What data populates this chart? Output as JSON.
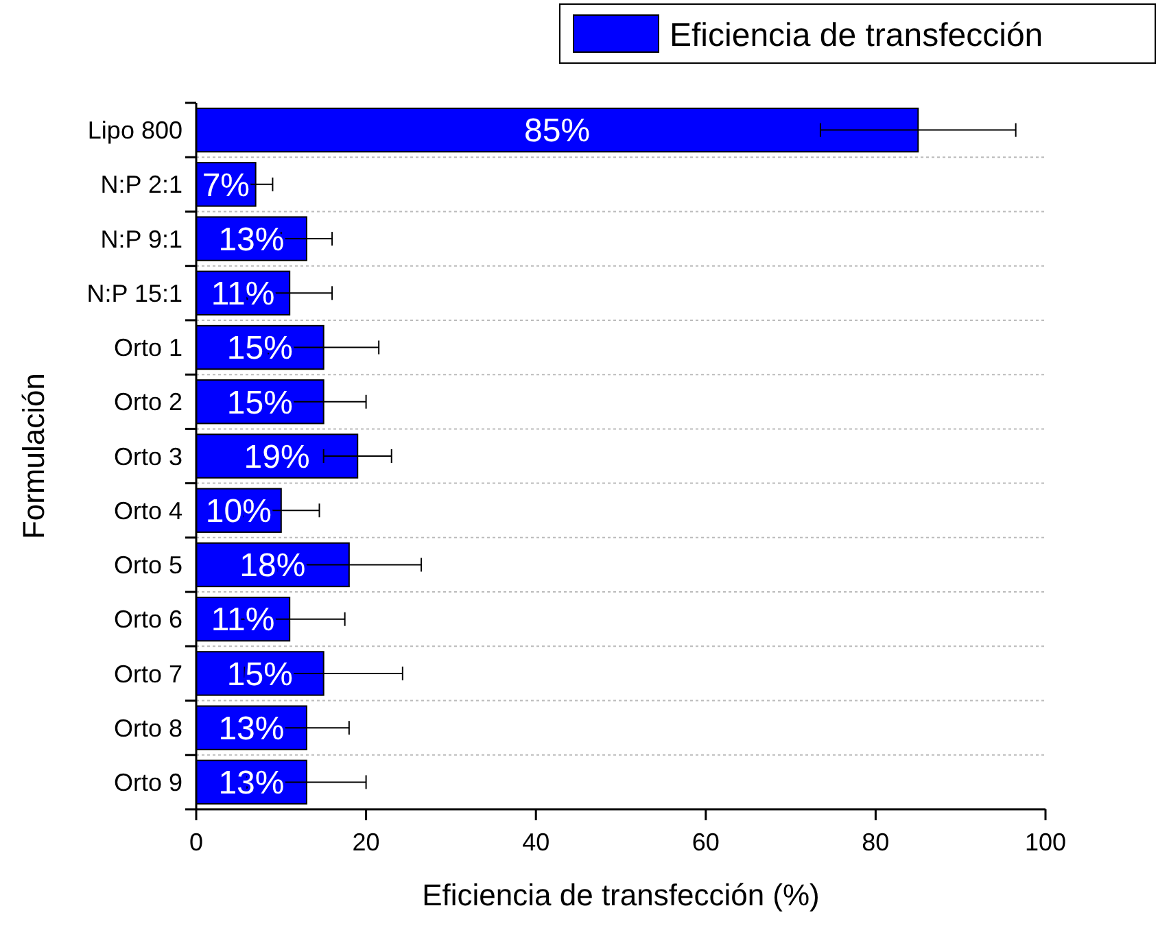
{
  "chart_data": {
    "type": "bar",
    "orientation": "horizontal",
    "xlabel": "Eficiencia de transfección (%)",
    "ylabel": "Formulación",
    "categories": [
      "Lipo 800",
      "N:P 2:1",
      "N:P 9:1",
      "N:P 15:1",
      "Orto 1",
      "Orto 2",
      "Orto 3",
      "Orto 4",
      "Orto 5",
      "Orto 6",
      "Orto 7",
      "Orto 8",
      "Orto 9"
    ],
    "series": [
      {
        "name": "Eficiencia de transfección",
        "color": "#0000ff",
        "values": [
          85,
          7,
          13,
          11,
          15,
          15,
          19,
          10,
          18,
          11,
          15,
          13,
          13
        ],
        "errors": [
          11.5,
          2,
          3,
          5,
          6.5,
          5,
          4,
          4.5,
          8.5,
          6.5,
          9.3,
          5,
          7
        ],
        "value_labels": [
          "85%",
          "7%",
          "13%",
          "11%",
          "15%",
          "15%",
          "19%",
          "10%",
          "18%",
          "11%",
          "15%",
          "13%",
          "13%"
        ]
      }
    ],
    "xlim": [
      0,
      100
    ],
    "xticks": [
      0,
      20,
      40,
      60,
      80,
      100
    ],
    "grid": "y",
    "legend": "top right"
  }
}
